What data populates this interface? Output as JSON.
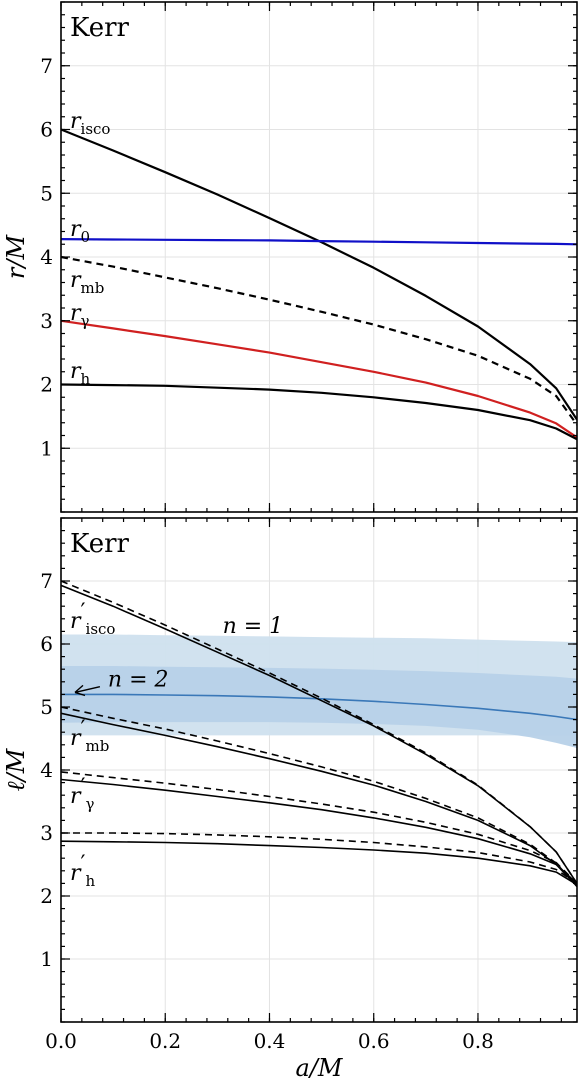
{
  "chart_data": [
    {
      "type": "line",
      "title": "Kerr",
      "xlabel": "",
      "ylabel": "r/M",
      "xlim": [
        0,
        0.99
      ],
      "ylim": [
        0,
        8
      ],
      "x_ticks": [
        0.0,
        0.2,
        0.4,
        0.6,
        0.8
      ],
      "x_tick_labels": [
        "0.0",
        "0.2",
        "0.4",
        "0.6",
        "0.8"
      ],
      "x_tick_labels_shown": false,
      "y_ticks": [
        1,
        2,
        3,
        4,
        5,
        6,
        7
      ],
      "y_tick_labels": [
        "1",
        "2",
        "3",
        "4",
        "5",
        "6",
        "7"
      ],
      "grid": true,
      "x": [
        0.0,
        0.1,
        0.2,
        0.3,
        0.4,
        0.5,
        0.6,
        0.7,
        0.8,
        0.9,
        0.95,
        0.99
      ],
      "series": [
        {
          "name": "r_isco",
          "label_main": "r",
          "label_sub": "isco",
          "color": "#000000",
          "dash": "solid",
          "values": [
            6.0,
            5.67,
            5.33,
            4.98,
            4.61,
            4.23,
            3.83,
            3.39,
            2.91,
            2.32,
            1.94,
            1.45
          ]
        },
        {
          "name": "r_0",
          "label_main": "r",
          "label_sub": "0",
          "color": "#1010c8",
          "dash": "solid",
          "values": [
            4.28,
            4.275,
            4.27,
            4.265,
            4.26,
            4.25,
            4.24,
            4.23,
            4.22,
            4.21,
            4.205,
            4.2
          ]
        },
        {
          "name": "r_mb",
          "label_main": "r",
          "label_sub": "mb",
          "color": "#000000",
          "dash": "dashed",
          "values": [
            4.0,
            3.85,
            3.68,
            3.51,
            3.33,
            3.14,
            2.94,
            2.71,
            2.45,
            2.09,
            1.82,
            1.37
          ]
        },
        {
          "name": "r_γ",
          "label_main": "r",
          "label_sub": "γ",
          "color": "#d02020",
          "dash": "solid",
          "values": [
            3.0,
            2.88,
            2.76,
            2.63,
            2.5,
            2.35,
            2.2,
            2.03,
            1.82,
            1.56,
            1.39,
            1.17
          ]
        },
        {
          "name": "r_h",
          "label_main": "r",
          "label_sub": "h",
          "color": "#000000",
          "dash": "solid",
          "values": [
            2.0,
            1.99,
            1.98,
            1.95,
            1.92,
            1.87,
            1.8,
            1.71,
            1.6,
            1.44,
            1.31,
            1.14
          ]
        }
      ]
    },
    {
      "type": "line",
      "title": "Kerr",
      "xlabel": "a/M",
      "ylabel": "ℓ/M",
      "xlim": [
        0,
        0.99
      ],
      "ylim": [
        0,
        8
      ],
      "x_ticks": [
        0.0,
        0.2,
        0.4,
        0.6,
        0.8
      ],
      "x_tick_labels": [
        "0.0",
        "0.2",
        "0.4",
        "0.6",
        "0.8"
      ],
      "y_ticks": [
        1,
        2,
        3,
        4,
        5,
        6,
        7
      ],
      "y_tick_labels": [
        "1",
        "2",
        "3",
        "4",
        "5",
        "6",
        "7"
      ],
      "grid": true,
      "x": [
        0.0,
        0.1,
        0.2,
        0.3,
        0.4,
        0.5,
        0.6,
        0.7,
        0.8,
        0.9,
        0.95,
        0.99
      ],
      "bands": [
        {
          "name": "n = 1",
          "color": "#cfe0ee",
          "lower": [
            4.55,
            4.55,
            4.55,
            4.55,
            4.55,
            4.55,
            4.55,
            4.55,
            4.55,
            4.55,
            4.55,
            4.55
          ],
          "upper": [
            6.15,
            6.15,
            6.14,
            6.13,
            6.12,
            6.11,
            6.1,
            6.09,
            6.07,
            6.05,
            6.04,
            6.03
          ]
        },
        {
          "name": "n = 2",
          "color": "#b7d1e8",
          "lower": [
            4.75,
            4.76,
            4.76,
            4.76,
            4.76,
            4.75,
            4.73,
            4.7,
            4.64,
            4.52,
            4.43,
            4.35
          ],
          "upper": [
            5.65,
            5.65,
            5.64,
            5.63,
            5.62,
            5.61,
            5.59,
            5.57,
            5.54,
            5.5,
            5.48,
            5.45
          ]
        }
      ],
      "series": [
        {
          "name": "n = 2 center",
          "color": "#3a78b8",
          "dash": "solid",
          "values": [
            5.2,
            5.2,
            5.19,
            5.18,
            5.16,
            5.13,
            5.09,
            5.04,
            4.98,
            4.9,
            4.85,
            4.8
          ]
        },
        {
          "name": "r'_isco",
          "label_main": "r",
          "label_sub": "isco",
          "color": "#000000",
          "dash": "solid",
          "values": [
            6.93,
            6.6,
            6.24,
            5.87,
            5.5,
            5.1,
            4.7,
            4.25,
            3.75,
            3.1,
            2.7,
            2.2
          ]
        },
        {
          "name": "r'_isco dashed",
          "color": "#000000",
          "dash": "dashed",
          "values": [
            7.0,
            6.66,
            6.3,
            5.92,
            5.54,
            5.14,
            4.72,
            4.27,
            3.76,
            3.1,
            2.7,
            2.2
          ]
        },
        {
          "name": "r'_mb",
          "label_main": "r",
          "label_sub": "mb",
          "color": "#000000",
          "dash": "solid",
          "values": [
            4.9,
            4.72,
            4.55,
            4.37,
            4.18,
            3.98,
            3.76,
            3.5,
            3.2,
            2.8,
            2.5,
            2.15
          ]
        },
        {
          "name": "r'_mb dashed",
          "color": "#000000",
          "dash": "dashed",
          "values": [
            5.0,
            4.82,
            4.65,
            4.46,
            4.26,
            4.05,
            3.82,
            3.55,
            3.24,
            2.82,
            2.52,
            2.15
          ]
        },
        {
          "name": "r'_γ",
          "label_main": "r",
          "label_sub": "γ",
          "color": "#000000",
          "dash": "solid",
          "values": [
            3.85,
            3.77,
            3.68,
            3.58,
            3.48,
            3.37,
            3.24,
            3.09,
            2.91,
            2.67,
            2.5,
            2.2
          ]
        },
        {
          "name": "r'_γ dashed",
          "color": "#000000",
          "dash": "dashed",
          "values": [
            3.97,
            3.88,
            3.79,
            3.69,
            3.58,
            3.46,
            3.33,
            3.17,
            2.98,
            2.72,
            2.53,
            2.2
          ]
        },
        {
          "name": "r'_h",
          "label_main": "r",
          "label_sub": "h",
          "color": "#000000",
          "dash": "solid",
          "values": [
            2.87,
            2.86,
            2.85,
            2.83,
            2.8,
            2.77,
            2.73,
            2.68,
            2.6,
            2.48,
            2.38,
            2.18
          ]
        },
        {
          "name": "r'_h dashed",
          "color": "#000000",
          "dash": "dashed",
          "values": [
            3.0,
            3.0,
            2.99,
            2.97,
            2.94,
            2.9,
            2.85,
            2.78,
            2.69,
            2.54,
            2.42,
            2.2
          ]
        }
      ],
      "annotations": [
        {
          "text": "n = 1",
          "x": 0.31,
          "y": 6.3
        },
        {
          "text": "n = 2",
          "x": 0.09,
          "y": 5.45,
          "arrow_to": [
            0.0,
            5.2
          ]
        }
      ]
    }
  ]
}
